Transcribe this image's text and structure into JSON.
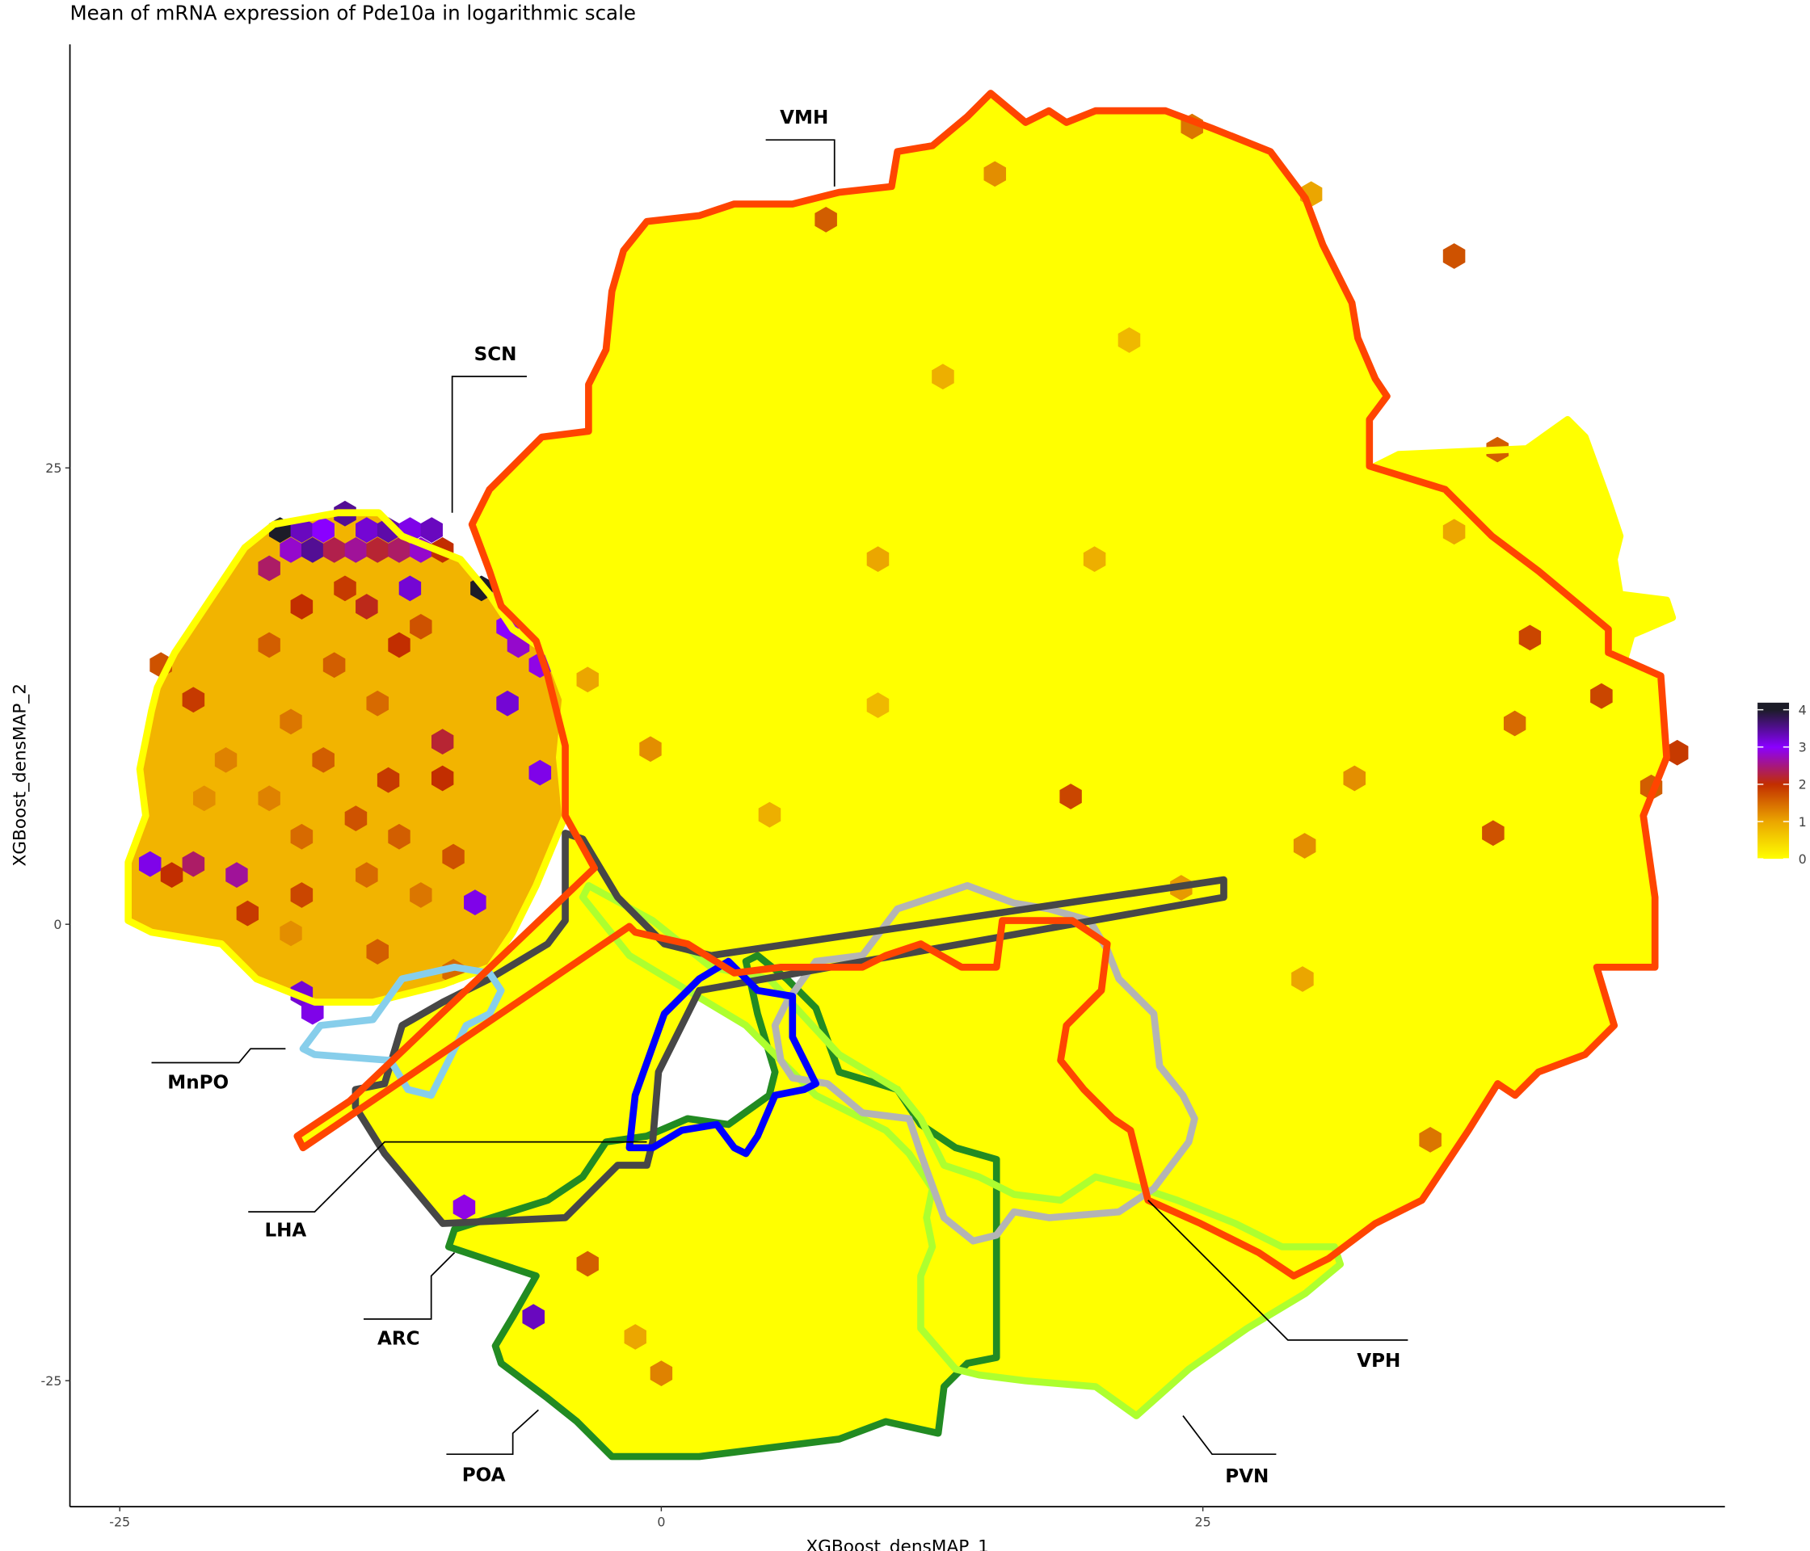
{
  "chart_data": {
    "type": "hexbin",
    "title": "Mean of mRNA expression of Pde10a in logarithmic scale",
    "x_label": "XGBoost_densMAP_1",
    "y_label": "XGBoost_densMAP_2",
    "xlim": [
      -27.3,
      49.1
    ],
    "ylim": [
      -31.9,
      48.2
    ],
    "xticks": [
      -25,
      0,
      25
    ],
    "yticks": [
      -25,
      0,
      25
    ],
    "colorbar": {
      "lim": [
        0,
        4.19
      ],
      "ticks": [
        0,
        1,
        2,
        3,
        4
      ],
      "colorscale": [
        [
          0,
          "#ffff00"
        ],
        [
          1,
          "#eba600"
        ],
        [
          2,
          "#c22e00"
        ],
        [
          3,
          "#8a00ff"
        ],
        [
          4,
          "#1c1c28"
        ]
      ]
    },
    "annotations": [
      "VMH",
      "SCN",
      "MnPO",
      "LHA",
      "ARC",
      "POA",
      "VPH",
      "PVN"
    ],
    "hexes": [
      {
        "x": -17.6,
        "y": 21.6,
        "value": 4.0
      },
      {
        "x": -16.6,
        "y": 21.6,
        "value": 3.3
      },
      {
        "x": -15.6,
        "y": 21.6,
        "value": 3.0
      },
      {
        "x": -14.6,
        "y": 22.5,
        "value": 3.5
      },
      {
        "x": -13.6,
        "y": 21.6,
        "value": 3.2
      },
      {
        "x": -12.6,
        "y": 21.6,
        "value": 3.4
      },
      {
        "x": -11.6,
        "y": 21.6,
        "value": 3.1
      },
      {
        "x": -10.6,
        "y": 21.6,
        "value": 3.3
      },
      {
        "x": -18.1,
        "y": 19.5,
        "value": 2.4
      },
      {
        "x": -17.1,
        "y": 20.5,
        "value": 2.8
      },
      {
        "x": -16.1,
        "y": 20.5,
        "value": 3.5
      },
      {
        "x": -15.1,
        "y": 20.5,
        "value": 2.3
      },
      {
        "x": -14.1,
        "y": 20.5,
        "value": 2.6
      },
      {
        "x": -13.1,
        "y": 20.5,
        "value": 2.2
      },
      {
        "x": -12.1,
        "y": 20.5,
        "value": 2.4
      },
      {
        "x": -11.1,
        "y": 20.5,
        "value": 2.8
      },
      {
        "x": -10.1,
        "y": 20.5,
        "value": 2.0
      },
      {
        "x": -8.3,
        "y": 18.4,
        "value": 4.2
      },
      {
        "x": -11.6,
        "y": 18.4,
        "value": 3.2
      },
      {
        "x": -7.1,
        "y": 16.3,
        "value": 3.0
      },
      {
        "x": -6.6,
        "y": 15.3,
        "value": 2.8
      },
      {
        "x": -7.1,
        "y": 12.1,
        "value": 3.2
      },
      {
        "x": -5.6,
        "y": 14.2,
        "value": 2.9
      },
      {
        "x": -10.1,
        "y": 10.0,
        "value": 2.2
      },
      {
        "x": -10.1,
        "y": 8.0,
        "value": 2.0
      },
      {
        "x": -5.6,
        "y": 8.3,
        "value": 3.1
      },
      {
        "x": -8.6,
        "y": 1.2,
        "value": 3.1
      },
      {
        "x": -19.6,
        "y": 2.7,
        "value": 2.6
      },
      {
        "x": -23.6,
        "y": 3.3,
        "value": 3.1
      },
      {
        "x": -21.6,
        "y": 3.3,
        "value": 2.4
      },
      {
        "x": -22.6,
        "y": 2.7,
        "value": 2.0
      },
      {
        "x": -19.1,
        "y": 0.6,
        "value": 1.9
      },
      {
        "x": -16.6,
        "y": 1.6,
        "value": 1.8
      },
      {
        "x": -16.6,
        "y": 17.4,
        "value": 2.0
      },
      {
        "x": -18.1,
        "y": 15.3,
        "value": 1.6
      },
      {
        "x": -21.6,
        "y": 12.3,
        "value": 1.9
      },
      {
        "x": -23.1,
        "y": 14.2,
        "value": 1.7
      },
      {
        "x": -14.6,
        "y": 18.4,
        "value": 1.9
      },
      {
        "x": -13.6,
        "y": 17.4,
        "value": 2.1
      },
      {
        "x": -12.1,
        "y": 15.3,
        "value": 2.0
      },
      {
        "x": -11.1,
        "y": 16.3,
        "value": 1.7
      },
      {
        "x": -15.1,
        "y": 14.2,
        "value": 1.6
      },
      {
        "x": -13.1,
        "y": 12.1,
        "value": 1.5
      },
      {
        "x": -17.1,
        "y": 11.1,
        "value": 1.4
      },
      {
        "x": -20.1,
        "y": 9.0,
        "value": 1.3
      },
      {
        "x": -15.6,
        "y": 9.0,
        "value": 1.6
      },
      {
        "x": -12.6,
        "y": 7.9,
        "value": 1.9
      },
      {
        "x": -14.1,
        "y": 5.8,
        "value": 1.7
      },
      {
        "x": -18.1,
        "y": 6.9,
        "value": 1.3
      },
      {
        "x": -21.1,
        "y": 6.9,
        "value": 1.2
      },
      {
        "x": -16.6,
        "y": 4.8,
        "value": 1.5
      },
      {
        "x": -12.1,
        "y": 4.8,
        "value": 1.6
      },
      {
        "x": -9.6,
        "y": 3.7,
        "value": 1.7
      },
      {
        "x": -13.6,
        "y": 2.7,
        "value": 1.5
      },
      {
        "x": -11.1,
        "y": 1.6,
        "value": 1.4
      },
      {
        "x": -17.1,
        "y": -0.5,
        "value": 1.2
      },
      {
        "x": -13.1,
        "y": -1.5,
        "value": 1.6
      },
      {
        "x": -9.6,
        "y": -2.6,
        "value": 1.5
      },
      {
        "x": -16.6,
        "y": -3.8,
        "value": 3.2
      },
      {
        "x": -16.1,
        "y": -4.8,
        "value": 3.1
      },
      {
        "x": -9.1,
        "y": -15.5,
        "value": 2.9
      },
      {
        "x": -5.9,
        "y": -21.5,
        "value": 3.3
      },
      {
        "x": 24.5,
        "y": 43.7,
        "value": 1.4
      },
      {
        "x": 15.4,
        "y": 41.1,
        "value": 1.2
      },
      {
        "x": 7.6,
        "y": 38.6,
        "value": 1.6
      },
      {
        "x": 30.0,
        "y": 40.0,
        "value": 1.0
      },
      {
        "x": 21.6,
        "y": 32.0,
        "value": 0.8
      },
      {
        "x": 13.0,
        "y": 30.0,
        "value": 0.9
      },
      {
        "x": 36.6,
        "y": 36.6,
        "value": 1.7
      },
      {
        "x": 38.6,
        "y": 26.0,
        "value": 1.6
      },
      {
        "x": 36.6,
        "y": 21.5,
        "value": 1.0
      },
      {
        "x": 40.1,
        "y": 15.7,
        "value": 1.8
      },
      {
        "x": 43.4,
        "y": 12.5,
        "value": 1.8
      },
      {
        "x": 46.9,
        "y": 9.4,
        "value": 1.9
      },
      {
        "x": 39.4,
        "y": 11.0,
        "value": 1.5
      },
      {
        "x": 32.0,
        "y": 8.0,
        "value": 1.2
      },
      {
        "x": 29.7,
        "y": 4.3,
        "value": 1.2
      },
      {
        "x": 18.9,
        "y": 7.0,
        "value": 1.8
      },
      {
        "x": 38.4,
        "y": 5.0,
        "value": 1.7
      },
      {
        "x": 45.7,
        "y": 7.5,
        "value": 1.6
      },
      {
        "x": 24.0,
        "y": 2.0,
        "value": 1.1
      },
      {
        "x": 29.6,
        "y": -3.0,
        "value": 1.0
      },
      {
        "x": 35.5,
        "y": -11.8,
        "value": 1.4
      },
      {
        "x": -3.4,
        "y": -18.6,
        "value": 1.6
      },
      {
        "x": -1.2,
        "y": -22.6,
        "value": 1.0
      },
      {
        "x": 0.0,
        "y": -24.6,
        "value": 1.3
      },
      {
        "x": -3.4,
        "y": 13.4,
        "value": 1.0
      },
      {
        "x": -0.5,
        "y": 9.6,
        "value": 1.2
      },
      {
        "x": 5.0,
        "y": 6.0,
        "value": 0.9
      },
      {
        "x": 10.0,
        "y": 12.0,
        "value": 0.8
      },
      {
        "x": 20.0,
        "y": 20.0,
        "value": 0.9
      },
      {
        "x": 10.0,
        "y": 20.0,
        "value": 1.0
      }
    ]
  }
}
